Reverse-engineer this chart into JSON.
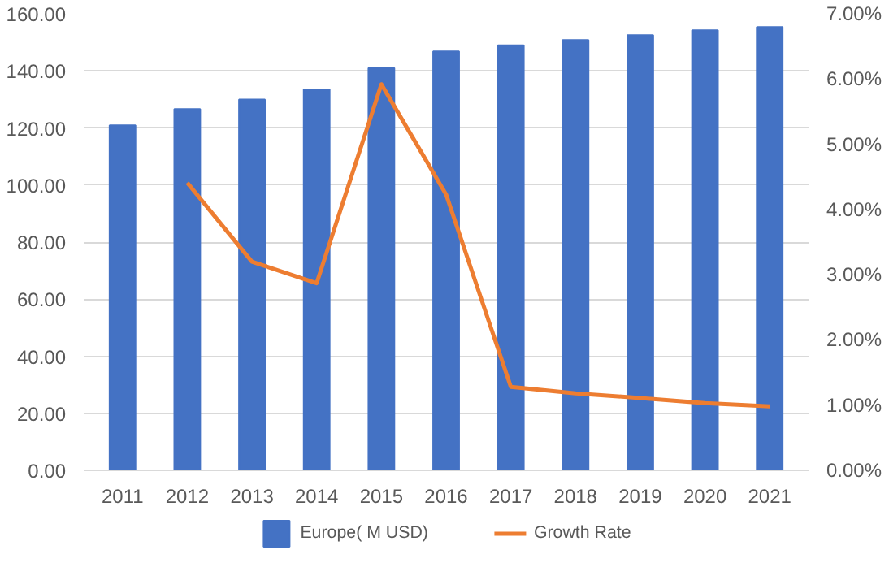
{
  "chart_data": {
    "type": "bar",
    "categories": [
      "2011",
      "2012",
      "2013",
      "2014",
      "2015",
      "2016",
      "2017",
      "2018",
      "2019",
      "2020",
      "2021"
    ],
    "series": [
      {
        "name": "Europe( M USD)",
        "color": "#4472c4",
        "values": [
          120.9,
          126.6,
          130.0,
          133.5,
          141.0,
          146.8,
          149.0,
          150.8,
          152.5,
          154.2,
          155.4
        ]
      },
      {
        "name": "Growth Rate",
        "type": "line",
        "axis": "y2",
        "color": "#ed7d31",
        "values": [
          null,
          4.41,
          3.2,
          2.87,
          5.92,
          4.23,
          1.28,
          1.18,
          1.11,
          1.03,
          0.98
        ]
      }
    ],
    "ylim": [
      0,
      160
    ],
    "yticks": [
      {
        "value": 0,
        "label": "0.00"
      },
      {
        "value": 20,
        "label": "20.00"
      },
      {
        "value": 40,
        "label": "40.00"
      },
      {
        "value": 60,
        "label": "60.00"
      },
      {
        "value": 80,
        "label": "80.00"
      },
      {
        "value": 100,
        "label": "100.00"
      },
      {
        "value": 120,
        "label": "120.00"
      },
      {
        "value": 140,
        "label": "140.00"
      },
      {
        "value": 160,
        "label": "160.00"
      }
    ],
    "y2lim": [
      0,
      7
    ],
    "y2ticks": [
      {
        "value": 0,
        "label": "0.00%"
      },
      {
        "value": 1,
        "label": "1.00%"
      },
      {
        "value": 2,
        "label": "2.00%"
      },
      {
        "value": 3,
        "label": "3.00%"
      },
      {
        "value": 4,
        "label": "4.00%"
      },
      {
        "value": 5,
        "label": "5.00%"
      },
      {
        "value": 6,
        "label": "6.00%"
      },
      {
        "value": 7,
        "label": "7.00%"
      }
    ],
    "grid": "y",
    "legend": "bottom",
    "marker": "none",
    "line_style": "solid"
  }
}
